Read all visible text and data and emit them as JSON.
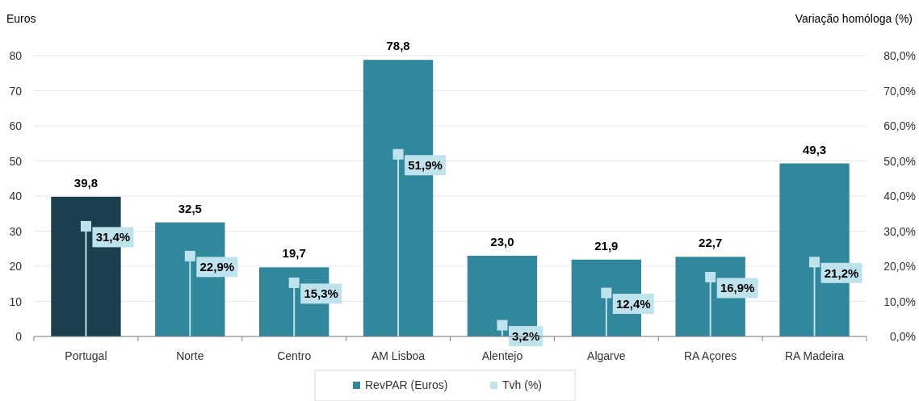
{
  "chart_data": {
    "type": "bar",
    "ylabel": "Euros",
    "y2label": "Variação homóloga (%)",
    "categories": [
      "Portugal",
      "Norte",
      "Centro",
      "AM Lisboa",
      "Alentejo",
      "Algarve",
      "RA Açores",
      "RA Madeira"
    ],
    "series": [
      {
        "name": "RevPAR (Euros)",
        "color": "#31879b",
        "colors": [
          "#1b3f4e",
          "#31879b",
          "#31879b",
          "#31879b",
          "#31879b",
          "#31879b",
          "#31879b",
          "#31879b"
        ],
        "values": [
          39.8,
          32.5,
          19.7,
          78.8,
          23.0,
          21.9,
          22.7,
          49.3
        ],
        "value_labels": [
          "39,8",
          "32,5",
          "19,7",
          "78,8",
          "23,0",
          "21,9",
          "22,7",
          "49,3"
        ]
      },
      {
        "name": "Tvh (%)",
        "type": "lollipop",
        "axis": "y2",
        "marker": "square",
        "color": "#bfe3ec",
        "values": [
          31.4,
          22.9,
          15.3,
          51.9,
          3.2,
          12.4,
          16.9,
          21.2
        ],
        "value_labels": [
          "31,4%",
          "22,9%",
          "15,3%",
          "51,9%",
          "3,2%",
          "12,4%",
          "16,9%",
          "21,2%"
        ]
      }
    ],
    "ylim": [
      0,
      80
    ],
    "yticks": [
      0,
      10,
      20,
      30,
      40,
      50,
      60,
      70,
      80
    ],
    "y2lim": [
      0,
      80
    ],
    "y2ticks": [
      {
        "value": 0,
        "label": "0,0%"
      },
      {
        "value": 10,
        "label": "10,0%"
      },
      {
        "value": 20,
        "label": "20,0%"
      },
      {
        "value": 30,
        "label": "30,0%"
      },
      {
        "value": 40,
        "label": "40,0%"
      },
      {
        "value": 50,
        "label": "50,0%"
      },
      {
        "value": 60,
        "label": "60,0%"
      },
      {
        "value": 70,
        "label": "70,0%"
      },
      {
        "value": 80,
        "label": "80,0%"
      }
    ],
    "grid": "y",
    "legend": "bottom"
  }
}
